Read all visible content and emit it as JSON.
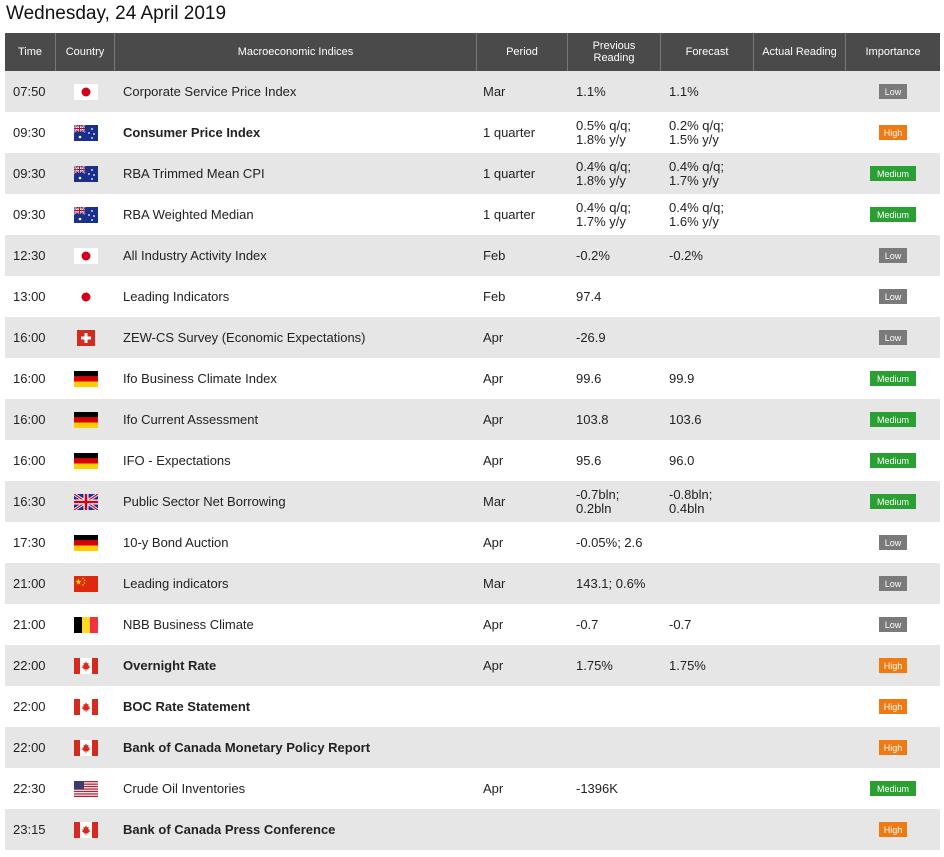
{
  "page_title": "Wednesday, 24 April 2019",
  "headers": {
    "time": "Time",
    "country": "Country",
    "indices": "Macroeconomic Indices",
    "period": "Period",
    "previous_line1": "Previous",
    "previous_line2": "Reading",
    "forecast": "Forecast",
    "actual": "Actual Reading",
    "importance": "Importance"
  },
  "flag_icons": [
    "japan-flag-icon",
    "australia-flag-icon",
    "switzerland-flag-icon",
    "germany-flag-icon",
    "uk-flag-icon",
    "china-flag-icon",
    "belgium-flag-icon",
    "canada-flag-icon",
    "usa-flag-icon"
  ],
  "colors": {
    "header_bg": "#4a4a4a",
    "row_alt": "#e6e6e6",
    "low": "#7a7a7a",
    "medium": "#2aa032",
    "high": "#f07a12"
  },
  "rows": [
    {
      "time": "07:50",
      "flag": "jp",
      "indicator": "Corporate Service Price Index",
      "bold": false,
      "period": "Mar",
      "previous": [
        "1.1%"
      ],
      "forecast": [
        "1.1%"
      ],
      "actual": "",
      "importance": "Low"
    },
    {
      "time": "09:30",
      "flag": "au",
      "indicator": "Consumer Price Index",
      "bold": true,
      "period": "1 quarter",
      "previous": [
        "0.5% q/q;",
        "1.8% y/y"
      ],
      "forecast": [
        "0.2% q/q;",
        "1.5% y/y"
      ],
      "actual": "",
      "importance": "High"
    },
    {
      "time": "09:30",
      "flag": "au",
      "indicator": "RBA Trimmed Mean CPI",
      "bold": false,
      "period": "1 quarter",
      "previous": [
        "0.4% q/q;",
        "1.8% y/y"
      ],
      "forecast": [
        "0.4% q/q;",
        "1.7% y/y"
      ],
      "actual": "",
      "importance": "Medium"
    },
    {
      "time": "09:30",
      "flag": "au",
      "indicator": "RBA Weighted Median",
      "bold": false,
      "period": "1 quarter",
      "previous": [
        "0.4% q/q;",
        "1.7% y/y"
      ],
      "forecast": [
        "0.4% q/q;",
        "1.6% y/y"
      ],
      "actual": "",
      "importance": "Medium"
    },
    {
      "time": "12:30",
      "flag": "jp",
      "indicator": "All Industry Activity Index",
      "bold": false,
      "period": "Feb",
      "previous": [
        "-0.2%"
      ],
      "forecast": [
        "-0.2%"
      ],
      "actual": "",
      "importance": "Low"
    },
    {
      "time": "13:00",
      "flag": "jp",
      "indicator": "Leading Indicators",
      "bold": false,
      "period": "Feb",
      "previous": [
        "97.4"
      ],
      "forecast": [],
      "actual": "",
      "importance": "Low"
    },
    {
      "time": "16:00",
      "flag": "ch",
      "indicator": "ZEW-CS Survey (Economic Expectations)",
      "bold": false,
      "period": "Apr",
      "previous": [
        "-26.9"
      ],
      "forecast": [],
      "actual": "",
      "importance": "Low"
    },
    {
      "time": "16:00",
      "flag": "de",
      "indicator": "Ifo Business Climate Index",
      "bold": false,
      "period": "Apr",
      "previous": [
        "99.6"
      ],
      "forecast": [
        "99.9"
      ],
      "actual": "",
      "importance": "Medium"
    },
    {
      "time": "16:00",
      "flag": "de",
      "indicator": "Ifo Current Assessment",
      "bold": false,
      "period": "Apr",
      "previous": [
        "103.8"
      ],
      "forecast": [
        "103.6"
      ],
      "actual": "",
      "importance": "Medium"
    },
    {
      "time": "16:00",
      "flag": "de",
      "indicator": "IFO - Expectations",
      "bold": false,
      "period": "Apr",
      "previous": [
        "95.6"
      ],
      "forecast": [
        "96.0"
      ],
      "actual": "",
      "importance": "Medium"
    },
    {
      "time": "16:30",
      "flag": "gb",
      "indicator": "Public Sector Net Borrowing",
      "bold": false,
      "period": "Mar",
      "previous": [
        "-0.7bln;",
        "0.2bln"
      ],
      "forecast": [
        "-0.8bln;",
        "0.4bln"
      ],
      "actual": "",
      "importance": "Medium"
    },
    {
      "time": "17:30",
      "flag": "de",
      "indicator": "10-y Bond Auction",
      "bold": false,
      "period": "Apr",
      "previous": [
        "-0.05%; 2.6"
      ],
      "forecast": [],
      "actual": "",
      "importance": "Low"
    },
    {
      "time": "21:00",
      "flag": "cn",
      "indicator": "Leading indicators",
      "bold": false,
      "period": "Mar",
      "previous": [
        "143.1; 0.6%"
      ],
      "forecast": [],
      "actual": "",
      "importance": "Low"
    },
    {
      "time": "21:00",
      "flag": "be",
      "indicator": "NBB Business Climate",
      "bold": false,
      "period": "Apr",
      "previous": [
        "-0.7"
      ],
      "forecast": [
        "-0.7"
      ],
      "actual": "",
      "importance": "Low"
    },
    {
      "time": "22:00",
      "flag": "ca",
      "indicator": "Overnight Rate",
      "bold": true,
      "period": "Apr",
      "previous": [
        "1.75%"
      ],
      "forecast": [
        "1.75%"
      ],
      "actual": "",
      "importance": "High"
    },
    {
      "time": "22:00",
      "flag": "ca",
      "indicator": "BOC Rate Statement",
      "bold": true,
      "period": "",
      "previous": [],
      "forecast": [],
      "actual": "",
      "importance": "High"
    },
    {
      "time": "22:00",
      "flag": "ca",
      "indicator": "Bank of Canada Monetary Policy Report",
      "bold": true,
      "period": "",
      "previous": [],
      "forecast": [],
      "actual": "",
      "importance": "High"
    },
    {
      "time": "22:30",
      "flag": "us",
      "indicator": "Crude Oil Inventories",
      "bold": false,
      "period": "Apr",
      "previous": [
        "-1396K"
      ],
      "forecast": [],
      "actual": "",
      "importance": "Medium"
    },
    {
      "time": "23:15",
      "flag": "ca",
      "indicator": "Bank of Canada Press Conference",
      "bold": true,
      "period": "",
      "previous": [],
      "forecast": [],
      "actual": "",
      "importance": "High"
    }
  ]
}
